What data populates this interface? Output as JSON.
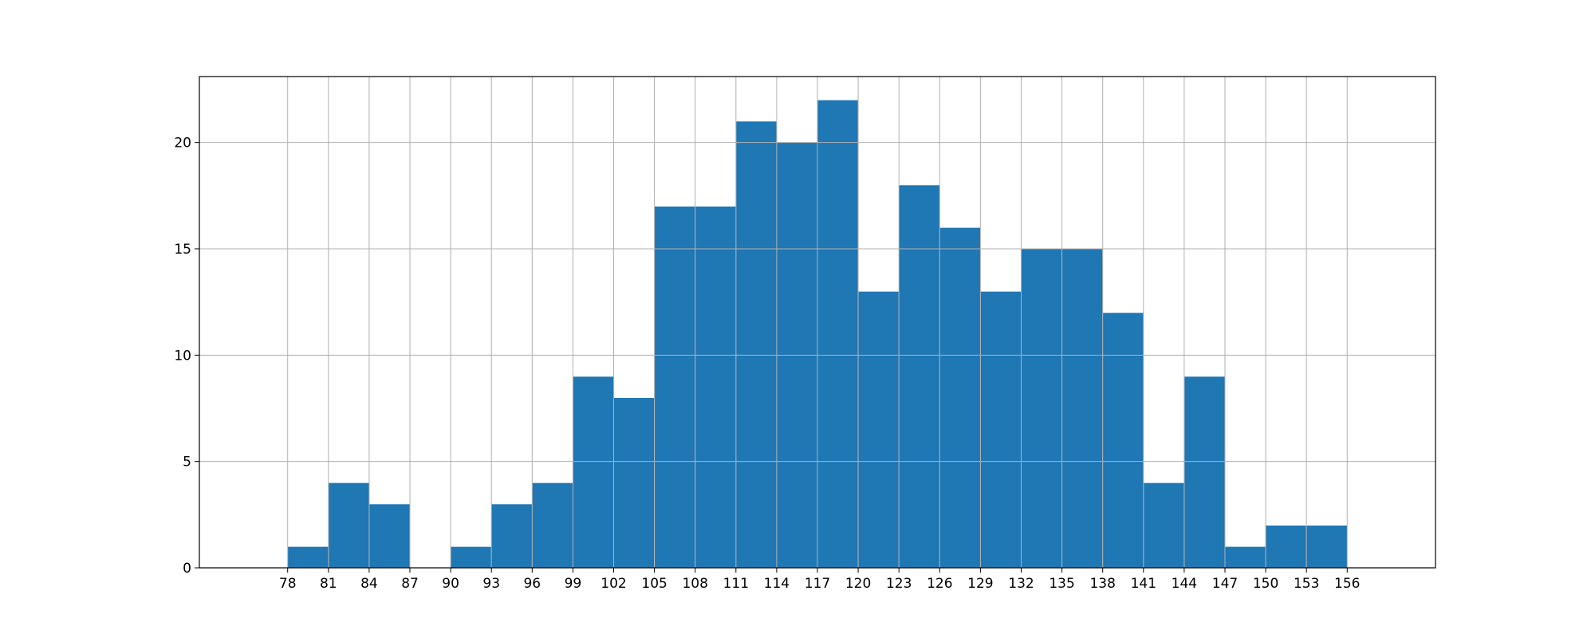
{
  "chart_data": {
    "type": "bar",
    "title": "",
    "xlabel": "",
    "ylabel": "",
    "bin_edges": [
      78,
      81,
      84,
      87,
      90,
      93,
      96,
      99,
      102,
      105,
      108,
      111,
      114,
      117,
      120,
      123,
      126,
      129,
      132,
      135,
      138,
      141,
      144,
      147,
      150,
      153,
      156
    ],
    "values": [
      1,
      4,
      3,
      0,
      1,
      3,
      4,
      9,
      8,
      17,
      17,
      21,
      20,
      22,
      13,
      18,
      16,
      13,
      15,
      15,
      12,
      4,
      9,
      1,
      2,
      2
    ],
    "xticks": [
      "78",
      "81",
      "84",
      "87",
      "90",
      "93",
      "96",
      "99",
      "102",
      "105",
      "108",
      "111",
      "114",
      "117",
      "120",
      "123",
      "126",
      "129",
      "132",
      "135",
      "138",
      "141",
      "144",
      "147",
      "150",
      "153",
      "156"
    ],
    "yticks": [
      "0",
      "5",
      "10",
      "15",
      "20"
    ],
    "xlim": [
      71.5,
      162.5
    ],
    "ylim": [
      0,
      23.1
    ],
    "grid": true,
    "bar_color": "#1f77b4",
    "bar_edge_color": "#ffffff",
    "grid_color": "#b0b0b0"
  }
}
